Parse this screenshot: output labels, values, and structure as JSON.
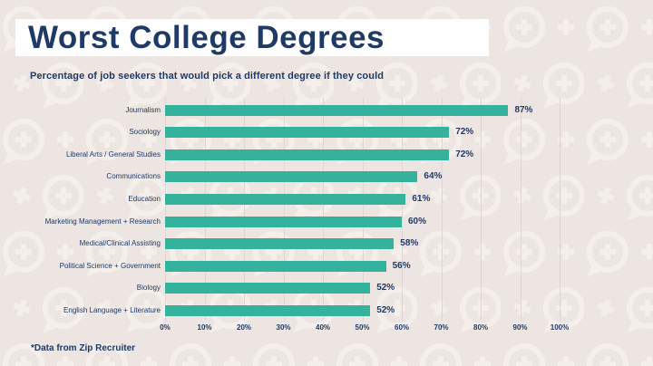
{
  "page": {
    "title": "Worst College Degrees",
    "subtitle": "Percentage of job seekers that would pick a different degree if they could",
    "footnote": "*Data from Zip Recruiter"
  },
  "colors": {
    "background": "#EDE5E2",
    "pattern": "#F6F0ED",
    "title_band": "#FFFFFF",
    "navy": "#203A66",
    "bar": "#35B29B",
    "gridline": "#DFD6D3"
  },
  "chart_data": {
    "type": "bar",
    "orientation": "horizontal",
    "title": "Worst College Degrees",
    "subtitle": "Percentage of job seekers that would pick a different degree if they could",
    "categories": [
      "Journalism",
      "Sociology",
      "Liberal Arts / General Studies",
      "Communications",
      "Education",
      "Marketing Management + Research",
      "Medical/Clinical Assisting",
      "Political Science + Government",
      "Biology",
      "English Language + Literature"
    ],
    "values": [
      87,
      72,
      72,
      64,
      61,
      60,
      58,
      56,
      52,
      52
    ],
    "value_labels": [
      "87%",
      "72%",
      "72%",
      "64%",
      "61%",
      "60%",
      "58%",
      "56%",
      "52%",
      "52%"
    ],
    "x_ticks": [
      "0%",
      "10%",
      "20%",
      "30%",
      "40%",
      "50%",
      "60%",
      "70%",
      "80%",
      "90%",
      "100%"
    ],
    "xlim": [
      0,
      100
    ],
    "grid": "vertical",
    "legend": "none",
    "source_note": "*Data from Zip Recruiter"
  }
}
